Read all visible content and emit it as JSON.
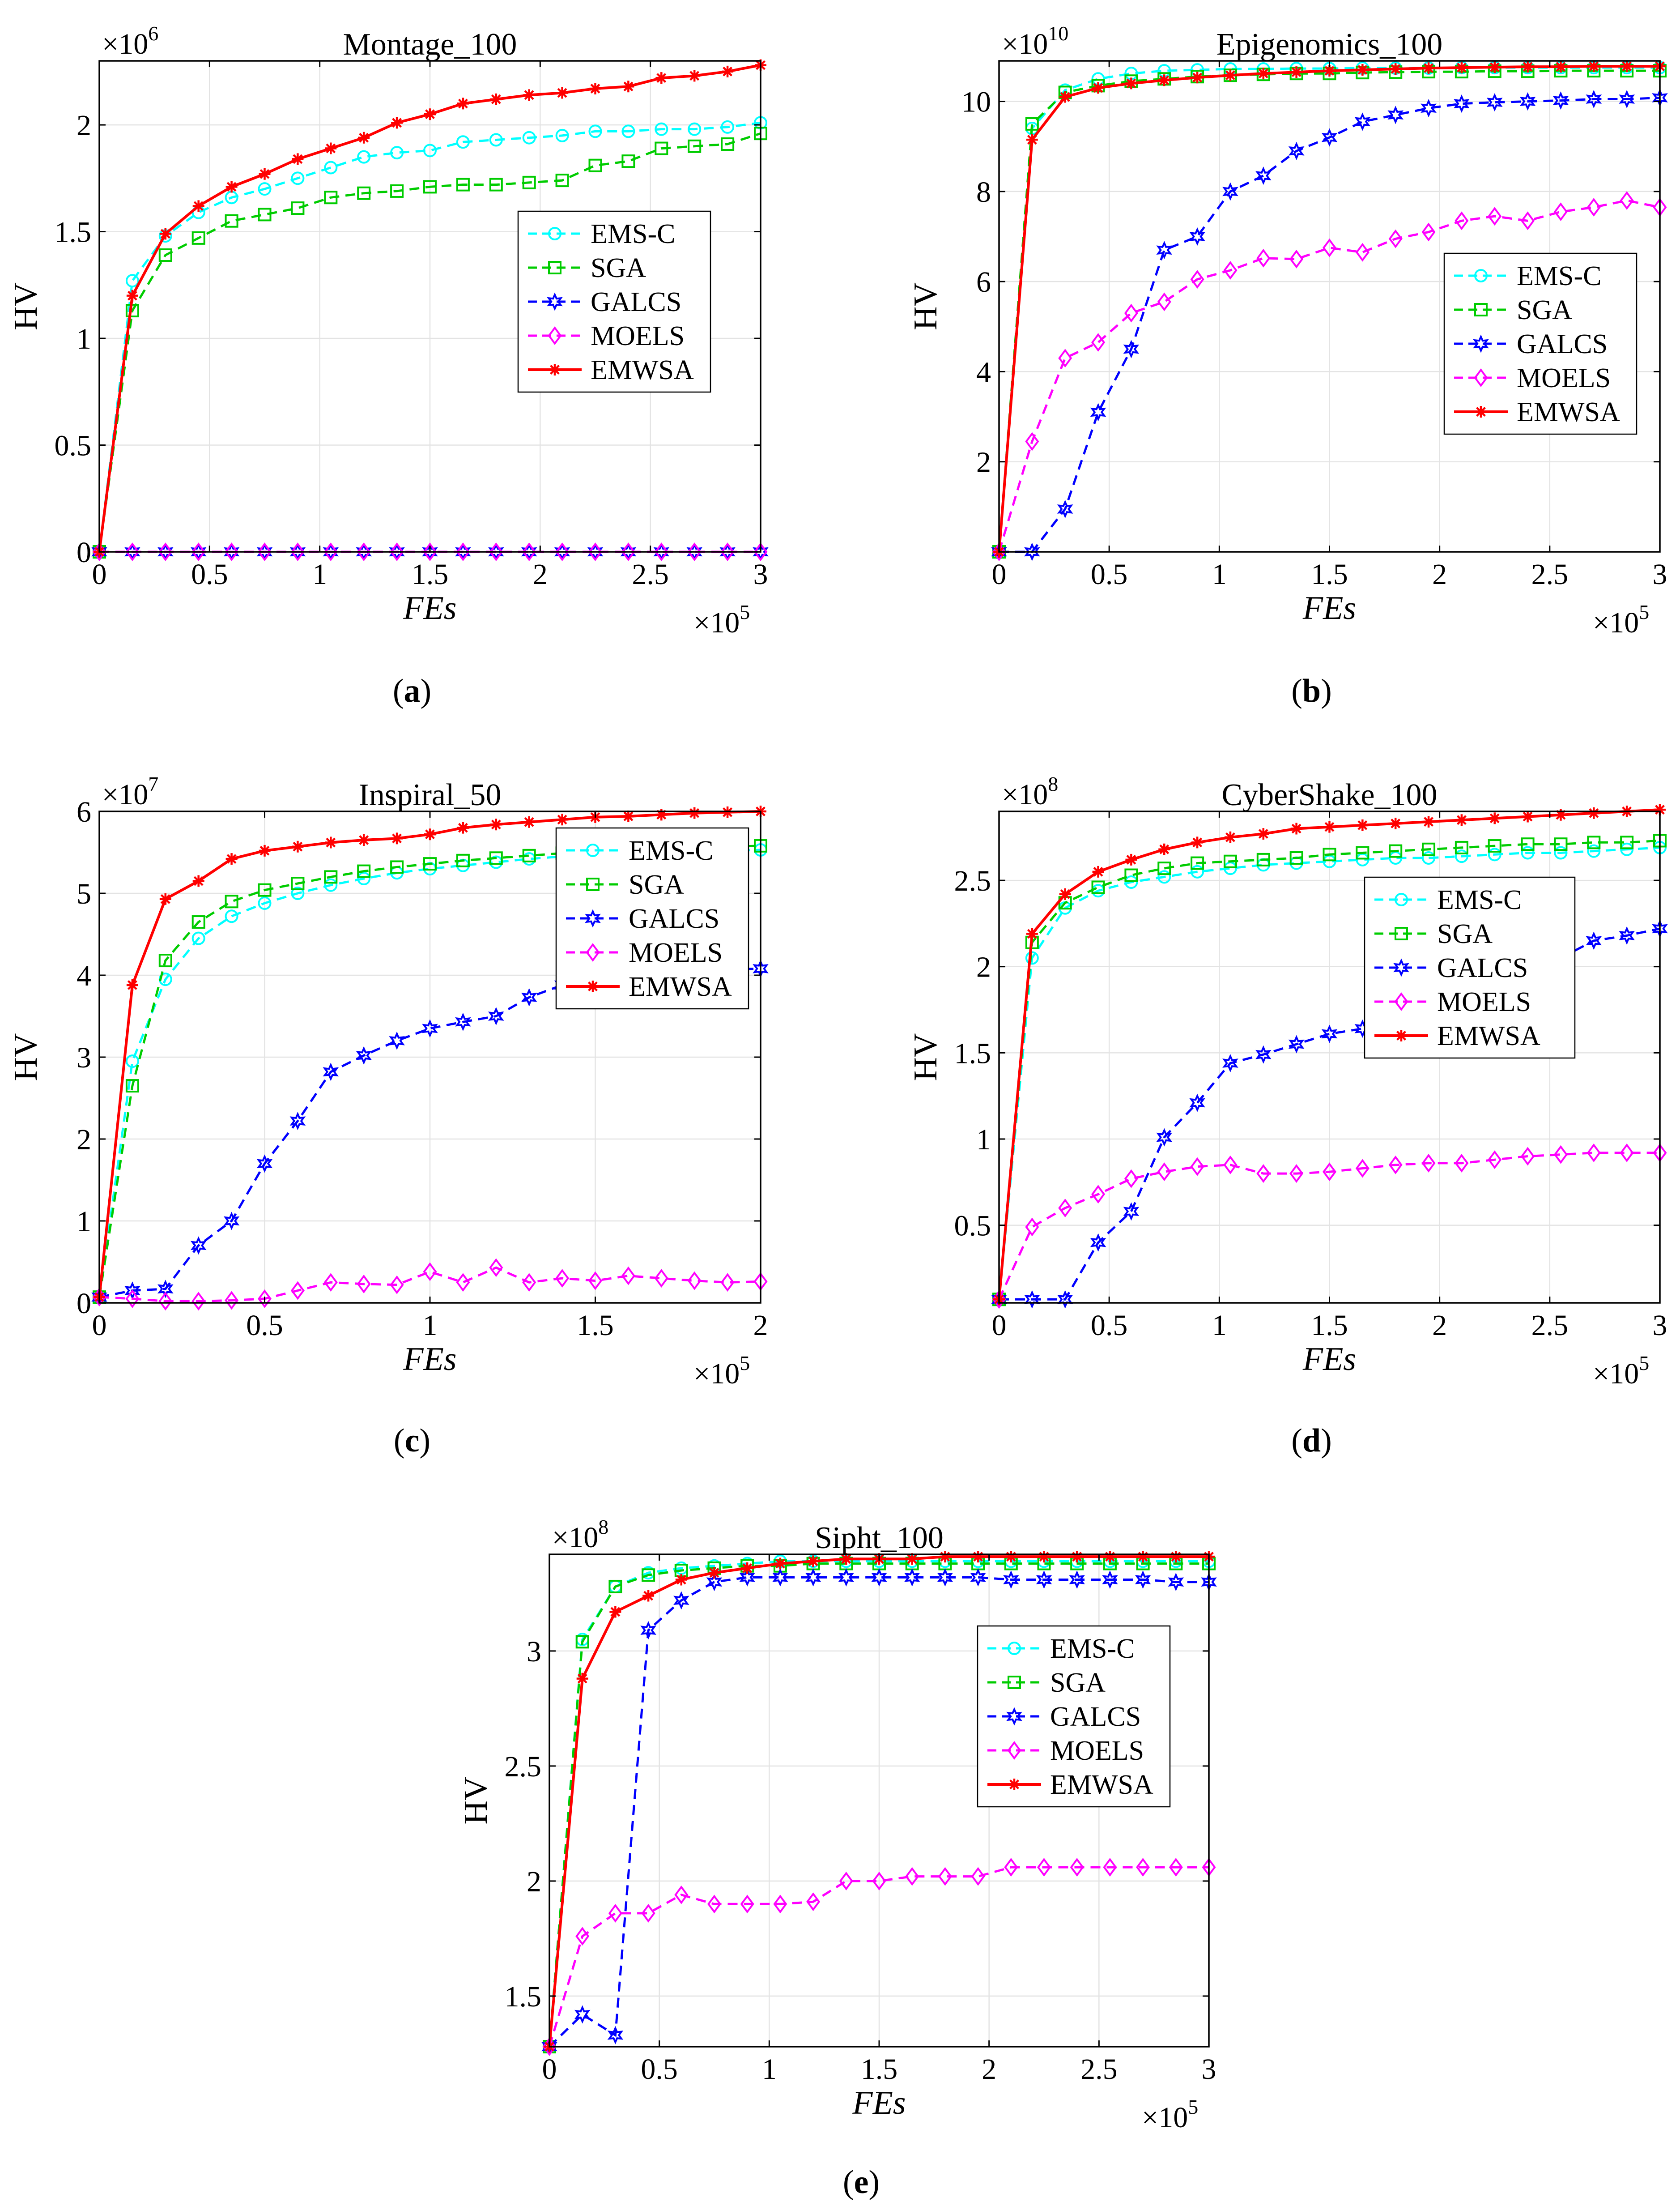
{
  "figure": {
    "colors": {
      "EMS-C": "#00ffff",
      "SGA": "#00cc00",
      "GALCS": "#0000ff",
      "MOELS": "#ff00ff",
      "EMWSA": "#ff0000"
    },
    "markers": {
      "EMS-C": "circle",
      "SGA": "square",
      "GALCS": "hexagram",
      "MOELS": "diamond",
      "EMWSA": "asterisk"
    }
  },
  "chart_data": [
    {
      "type": "line",
      "panel": "a",
      "caption": "a",
      "title": "Montage_100",
      "xlabel": "FEs",
      "ylabel": "HV",
      "x_multiplier": {
        "base": "×10",
        "exp": "5"
      },
      "y_multiplier": {
        "base": "×10",
        "exp": "6"
      },
      "xlim": [
        0,
        3
      ],
      "ylim": [
        0,
        2.3
      ],
      "xticks": [
        0,
        0.5,
        1,
        1.5,
        2,
        2.5,
        3
      ],
      "xtick_labels": [
        "0",
        "0.5",
        "1",
        "1.5",
        "2",
        "2.5",
        "3"
      ],
      "yticks": [
        0,
        0.5,
        1,
        1.5,
        2
      ],
      "ytick_labels": [
        "0",
        "0.5",
        "1",
        "1.5",
        "2"
      ],
      "legend": {
        "position": "center-right",
        "entries": [
          "EMS-C",
          "SGA",
          "GALCS",
          "MOELS",
          "EMWSA"
        ]
      },
      "x": [
        0,
        0.15,
        0.3,
        0.45,
        0.6,
        0.75,
        0.9,
        1.05,
        1.2,
        1.35,
        1.5,
        1.65,
        1.8,
        1.95,
        2.1,
        2.25,
        2.4,
        2.55,
        2.7,
        2.85,
        3.0
      ],
      "series": [
        {
          "name": "EMS-C",
          "values": [
            0,
            1.27,
            1.48,
            1.59,
            1.66,
            1.7,
            1.75,
            1.8,
            1.85,
            1.87,
            1.88,
            1.92,
            1.93,
            1.94,
            1.95,
            1.97,
            1.97,
            1.98,
            1.98,
            1.99,
            2.01
          ]
        },
        {
          "name": "SGA",
          "values": [
            0,
            1.13,
            1.39,
            1.47,
            1.55,
            1.58,
            1.61,
            1.66,
            1.68,
            1.69,
            1.71,
            1.72,
            1.72,
            1.73,
            1.74,
            1.81,
            1.83,
            1.89,
            1.9,
            1.91,
            1.96
          ]
        },
        {
          "name": "GALCS",
          "values": [
            0,
            0,
            0,
            0,
            0,
            0,
            0,
            0,
            0,
            0,
            0,
            0,
            0,
            0,
            0,
            0,
            0,
            0,
            0,
            0,
            0
          ]
        },
        {
          "name": "MOELS",
          "values": [
            0,
            0,
            0,
            0,
            0,
            0,
            0,
            0,
            0,
            0,
            0,
            0,
            0,
            0,
            0,
            0,
            0,
            0,
            0,
            0,
            0
          ]
        },
        {
          "name": "EMWSA",
          "values": [
            0,
            1.2,
            1.49,
            1.62,
            1.71,
            1.77,
            1.84,
            1.89,
            1.94,
            2.01,
            2.05,
            2.1,
            2.12,
            2.14,
            2.15,
            2.17,
            2.18,
            2.22,
            2.23,
            2.25,
            2.28
          ]
        }
      ]
    },
    {
      "type": "line",
      "panel": "b",
      "caption": "b",
      "title": "Epigenomics_100",
      "xlabel": "FEs",
      "ylabel": "HV",
      "x_multiplier": {
        "base": "×10",
        "exp": "5"
      },
      "y_multiplier": {
        "base": "×10",
        "exp": "10"
      },
      "xlim": [
        0,
        3
      ],
      "ylim": [
        0,
        10.9
      ],
      "xticks": [
        0,
        0.5,
        1,
        1.5,
        2,
        2.5,
        3
      ],
      "xtick_labels": [
        "0",
        "0.5",
        "1",
        "1.5",
        "2",
        "2.5",
        "3"
      ],
      "yticks": [
        2,
        4,
        6,
        8,
        10
      ],
      "ytick_labels": [
        "2",
        "4",
        "6",
        "8",
        "10"
      ],
      "legend": {
        "position": "center-right",
        "entries": [
          "EMS-C",
          "SGA",
          "GALCS",
          "MOELS",
          "EMWSA"
        ]
      },
      "x": [
        0,
        0.15,
        0.3,
        0.45,
        0.6,
        0.75,
        0.9,
        1.05,
        1.2,
        1.35,
        1.5,
        1.65,
        1.8,
        1.95,
        2.1,
        2.25,
        2.4,
        2.55,
        2.7,
        2.85,
        3.0
      ],
      "series": [
        {
          "name": "EMS-C",
          "values": [
            0,
            9.4,
            10.25,
            10.5,
            10.62,
            10.68,
            10.7,
            10.72,
            10.72,
            10.73,
            10.73,
            10.74,
            10.74,
            10.74,
            10.75,
            10.75,
            10.75,
            10.75,
            10.75,
            10.75,
            10.75
          ]
        },
        {
          "name": "SGA",
          "values": [
            0,
            9.5,
            10.2,
            10.35,
            10.45,
            10.5,
            10.55,
            10.58,
            10.6,
            10.62,
            10.62,
            10.64,
            10.65,
            10.66,
            10.66,
            10.67,
            10.67,
            10.68,
            10.68,
            10.68,
            10.68
          ]
        },
        {
          "name": "GALCS",
          "values": [
            0,
            0,
            0.95,
            3.1,
            4.5,
            6.7,
            7.0,
            8.0,
            8.35,
            8.9,
            9.2,
            9.55,
            9.7,
            9.85,
            9.95,
            9.98,
            10.0,
            10.02,
            10.05,
            10.05,
            10.08
          ]
        },
        {
          "name": "MOELS",
          "values": [
            0,
            2.45,
            4.3,
            4.65,
            5.3,
            5.55,
            6.05,
            6.25,
            6.52,
            6.5,
            6.75,
            6.65,
            6.95,
            7.1,
            7.35,
            7.45,
            7.35,
            7.55,
            7.65,
            7.8,
            7.65
          ]
        },
        {
          "name": "EMWSA",
          "values": [
            0,
            9.15,
            10.1,
            10.3,
            10.4,
            10.47,
            10.53,
            10.58,
            10.62,
            10.65,
            10.68,
            10.7,
            10.72,
            10.74,
            10.75,
            10.76,
            10.77,
            10.77,
            10.78,
            10.78,
            10.78
          ]
        }
      ]
    },
    {
      "type": "line",
      "panel": "c",
      "caption": "c",
      "title": "Inspiral_50",
      "xlabel": "FEs",
      "ylabel": "HV",
      "x_multiplier": {
        "base": "×10",
        "exp": "5"
      },
      "y_multiplier": {
        "base": "×10",
        "exp": "7"
      },
      "xlim": [
        0,
        2
      ],
      "ylim": [
        0,
        6
      ],
      "xticks": [
        0,
        0.5,
        1,
        1.5,
        2
      ],
      "xtick_labels": [
        "0",
        "0.5",
        "1",
        "1.5",
        "2"
      ],
      "yticks": [
        0,
        1,
        2,
        3,
        4,
        5,
        6
      ],
      "ytick_labels": [
        "0",
        "1",
        "2",
        "3",
        "4",
        "5",
        "6"
      ],
      "legend": {
        "position": "top-right",
        "entries": [
          "EMS-C",
          "SGA",
          "GALCS",
          "MOELS",
          "EMWSA"
        ]
      },
      "x": [
        0,
        0.1,
        0.2,
        0.3,
        0.4,
        0.5,
        0.6,
        0.7,
        0.8,
        0.9,
        1.0,
        1.1,
        1.2,
        1.3,
        1.4,
        1.5,
        1.6,
        1.7,
        1.8,
        1.9,
        2.0
      ],
      "series": [
        {
          "name": "EMS-C",
          "values": [
            0.07,
            2.95,
            3.95,
            4.45,
            4.72,
            4.88,
            5.0,
            5.1,
            5.18,
            5.25,
            5.3,
            5.34,
            5.38,
            5.42,
            5.45,
            5.47,
            5.49,
            5.5,
            5.51,
            5.52,
            5.53
          ]
        },
        {
          "name": "SGA",
          "values": [
            0.07,
            2.65,
            4.18,
            4.65,
            4.9,
            5.04,
            5.12,
            5.2,
            5.27,
            5.32,
            5.36,
            5.4,
            5.43,
            5.46,
            5.49,
            5.51,
            5.53,
            5.55,
            5.56,
            5.57,
            5.58
          ]
        },
        {
          "name": "GALCS",
          "values": [
            0.07,
            0.15,
            0.17,
            0.7,
            1.0,
            1.7,
            2.22,
            2.82,
            3.02,
            3.2,
            3.35,
            3.43,
            3.5,
            3.73,
            3.88,
            3.95,
            4.0,
            4.03,
            4.05,
            4.07,
            4.08
          ]
        },
        {
          "name": "MOELS",
          "values": [
            0.07,
            0.05,
            0.02,
            0.02,
            0.03,
            0.05,
            0.15,
            0.25,
            0.23,
            0.22,
            0.38,
            0.25,
            0.43,
            0.25,
            0.3,
            0.27,
            0.33,
            0.3,
            0.27,
            0.25,
            0.26
          ]
        },
        {
          "name": "EMWSA",
          "values": [
            0.07,
            3.88,
            4.93,
            5.15,
            5.42,
            5.52,
            5.57,
            5.62,
            5.65,
            5.67,
            5.72,
            5.8,
            5.84,
            5.87,
            5.9,
            5.93,
            5.94,
            5.96,
            5.98,
            5.99,
            6.0
          ]
        }
      ]
    },
    {
      "type": "line",
      "panel": "d",
      "caption": "d",
      "title": "CyberShake_100",
      "xlabel": "FEs",
      "ylabel": "HV",
      "x_multiplier": {
        "base": "×10",
        "exp": "5"
      },
      "y_multiplier": {
        "base": "×10",
        "exp": "8"
      },
      "xlim": [
        0,
        3
      ],
      "ylim": [
        0.05,
        2.9
      ],
      "xticks": [
        0,
        0.5,
        1,
        1.5,
        2,
        2.5,
        3
      ],
      "xtick_labels": [
        "0",
        "0.5",
        "1",
        "1.5",
        "2",
        "2.5",
        "3"
      ],
      "yticks": [
        0.5,
        1,
        1.5,
        2,
        2.5
      ],
      "ytick_labels": [
        "0.5",
        "1",
        "1.5",
        "2",
        "2.5"
      ],
      "legend": {
        "position": "center-right",
        "entries": [
          "EMS-C",
          "SGA",
          "GALCS",
          "MOELS",
          "EMWSA"
        ]
      },
      "x": [
        0,
        0.15,
        0.3,
        0.45,
        0.6,
        0.75,
        0.9,
        1.05,
        1.2,
        1.35,
        1.5,
        1.65,
        1.8,
        1.95,
        2.1,
        2.25,
        2.4,
        2.55,
        2.7,
        2.85,
        3.0
      ],
      "series": [
        {
          "name": "EMS-C",
          "values": [
            0.07,
            2.05,
            2.34,
            2.44,
            2.49,
            2.52,
            2.55,
            2.57,
            2.59,
            2.6,
            2.61,
            2.62,
            2.63,
            2.63,
            2.64,
            2.65,
            2.66,
            2.66,
            2.67,
            2.68,
            2.69
          ]
        },
        {
          "name": "SGA",
          "values": [
            0.07,
            2.14,
            2.37,
            2.46,
            2.53,
            2.57,
            2.6,
            2.61,
            2.62,
            2.63,
            2.65,
            2.66,
            2.67,
            2.68,
            2.69,
            2.7,
            2.71,
            2.71,
            2.72,
            2.72,
            2.73
          ]
        },
        {
          "name": "GALCS",
          "values": [
            0.07,
            0.07,
            0.07,
            0.4,
            0.58,
            1.01,
            1.21,
            1.44,
            1.49,
            1.55,
            1.61,
            1.64,
            1.68,
            1.72,
            1.76,
            1.8,
            1.9,
            2.05,
            2.15,
            2.18,
            2.22
          ]
        },
        {
          "name": "MOELS",
          "values": [
            0.07,
            0.49,
            0.6,
            0.68,
            0.77,
            0.81,
            0.84,
            0.85,
            0.8,
            0.8,
            0.81,
            0.83,
            0.85,
            0.86,
            0.86,
            0.88,
            0.9,
            0.91,
            0.92,
            0.92,
            0.92
          ]
        },
        {
          "name": "EMWSA",
          "values": [
            0.07,
            2.19,
            2.42,
            2.55,
            2.62,
            2.68,
            2.72,
            2.75,
            2.77,
            2.8,
            2.81,
            2.82,
            2.83,
            2.84,
            2.85,
            2.86,
            2.87,
            2.88,
            2.89,
            2.9,
            2.91
          ]
        }
      ]
    },
    {
      "type": "line",
      "panel": "e",
      "caption": "e",
      "title": "Sipht_100",
      "xlabel": "FEs",
      "ylabel": "HV",
      "x_multiplier": {
        "base": "×10",
        "exp": "5"
      },
      "y_multiplier": {
        "base": "×10",
        "exp": "8"
      },
      "xlim": [
        0,
        3
      ],
      "ylim": [
        1.28,
        3.42
      ],
      "xticks": [
        0,
        0.5,
        1,
        1.5,
        2,
        2.5,
        3
      ],
      "xtick_labels": [
        "0",
        "0.5",
        "1",
        "1.5",
        "2",
        "2.5",
        "3"
      ],
      "yticks": [
        1.5,
        2,
        2.5,
        3
      ],
      "ytick_labels": [
        "1.5",
        "2",
        "2.5",
        "3"
      ],
      "legend": {
        "position": "center-right",
        "entries": [
          "EMS-C",
          "SGA",
          "GALCS",
          "MOELS",
          "EMWSA"
        ]
      },
      "x": [
        0,
        0.15,
        0.3,
        0.45,
        0.6,
        0.75,
        0.9,
        1.05,
        1.2,
        1.35,
        1.5,
        1.65,
        1.8,
        1.95,
        2.1,
        2.25,
        2.4,
        2.55,
        2.7,
        2.85,
        3.0
      ],
      "series": [
        {
          "name": "EMS-C",
          "values": [
            1.28,
            3.05,
            3.28,
            3.34,
            3.36,
            3.37,
            3.38,
            3.39,
            3.39,
            3.39,
            3.39,
            3.39,
            3.39,
            3.39,
            3.39,
            3.39,
            3.39,
            3.39,
            3.39,
            3.39,
            3.39
          ]
        },
        {
          "name": "SGA",
          "values": [
            1.28,
            3.04,
            3.28,
            3.33,
            3.35,
            3.36,
            3.37,
            3.37,
            3.38,
            3.38,
            3.38,
            3.38,
            3.38,
            3.38,
            3.38,
            3.38,
            3.38,
            3.38,
            3.38,
            3.38,
            3.38
          ]
        },
        {
          "name": "GALCS",
          "values": [
            1.28,
            1.42,
            1.33,
            3.09,
            3.22,
            3.3,
            3.32,
            3.32,
            3.32,
            3.32,
            3.32,
            3.32,
            3.32,
            3.32,
            3.31,
            3.31,
            3.31,
            3.31,
            3.31,
            3.3,
            3.3
          ]
        },
        {
          "name": "MOELS",
          "values": [
            1.28,
            1.76,
            1.86,
            1.86,
            1.94,
            1.9,
            1.9,
            1.9,
            1.91,
            2.0,
            2.0,
            2.02,
            2.02,
            2.02,
            2.06,
            2.06,
            2.06,
            2.06,
            2.06,
            2.06,
            2.06
          ]
        },
        {
          "name": "EMWSA",
          "values": [
            1.28,
            2.88,
            3.17,
            3.24,
            3.31,
            3.34,
            3.36,
            3.38,
            3.39,
            3.4,
            3.4,
            3.4,
            3.41,
            3.41,
            3.41,
            3.41,
            3.41,
            3.41,
            3.41,
            3.41,
            3.41
          ]
        }
      ]
    }
  ]
}
